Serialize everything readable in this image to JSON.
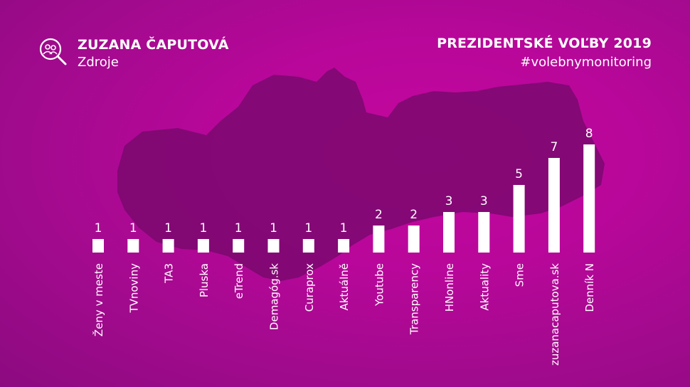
{
  "header": {
    "name": "ZUZANA ČAPUTOVÁ",
    "subtitle": "Zdroje",
    "title": "PREZIDENTSKÉ VOĽBY 2019",
    "hashtag": "#volebnymonitoring",
    "logo_icon": "search-people-icon"
  },
  "colors": {
    "background": "#b8079a",
    "map_shape": "#7a086f",
    "bars": "#ffffff",
    "text": "#ffffff"
  },
  "chart_data": {
    "type": "bar",
    "categories": [
      "Ženy v meste",
      "TVnoviny",
      "TA3",
      "Pluska",
      "eTrend",
      "Demagóg.sk",
      "Curaprox",
      "Aktuálně",
      "Youtube",
      "Transparency",
      "HNonline",
      "Aktuality",
      "Sme",
      "zuzanacaputova.sk",
      "Denník N"
    ],
    "values": [
      1,
      1,
      1,
      1,
      1,
      1,
      1,
      1,
      2,
      2,
      3,
      3,
      5,
      7,
      8
    ],
    "ylim": [
      0,
      8
    ],
    "grid": false,
    "legend": "none"
  }
}
